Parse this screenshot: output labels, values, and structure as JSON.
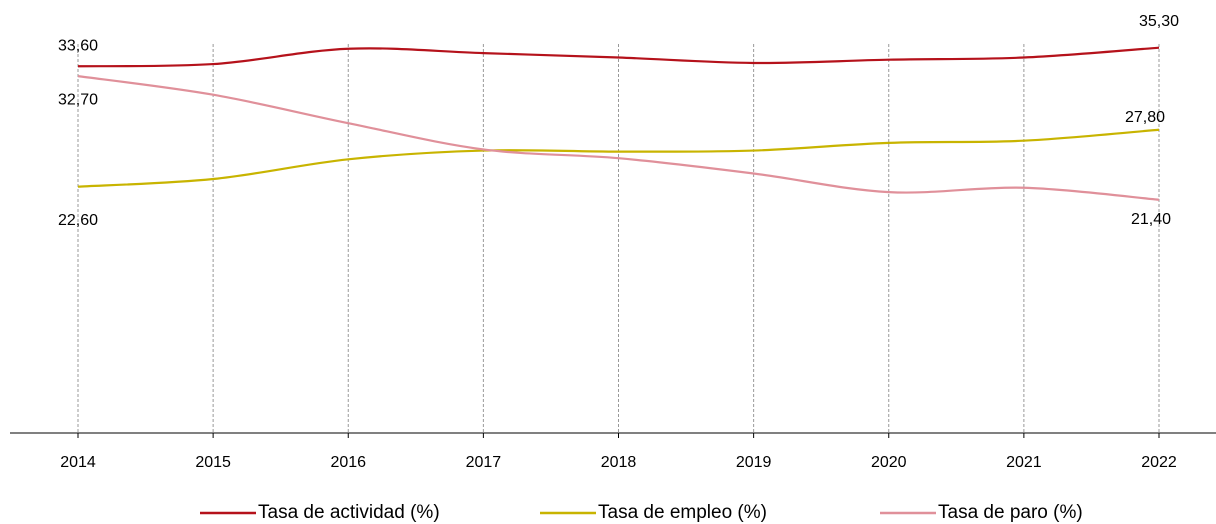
{
  "chart_data": {
    "type": "line",
    "categories": [
      "2014",
      "2015",
      "2016",
      "2017",
      "2018",
      "2019",
      "2020",
      "2021",
      "2022"
    ],
    "series": [
      {
        "name": "Tasa de actividad (%)",
        "color": "#b5121b",
        "values": [
          33.6,
          33.8,
          35.2,
          34.8,
          34.4,
          33.9,
          34.2,
          34.4,
          35.3
        ],
        "value_labels": [
          "33,60",
          null,
          null,
          null,
          null,
          null,
          null,
          null,
          "35,30"
        ]
      },
      {
        "name": "Tasa de empleo (%)",
        "color": "#c8b400",
        "values": [
          22.6,
          23.3,
          25.1,
          25.9,
          25.8,
          25.9,
          26.6,
          26.8,
          27.8
        ],
        "value_labels": [
          "22,60",
          null,
          null,
          null,
          null,
          null,
          null,
          null,
          "27,80"
        ]
      },
      {
        "name": "Tasa de paro (%)",
        "color": "#e0909a",
        "values": [
          32.7,
          31.0,
          28.4,
          26.0,
          25.2,
          23.8,
          22.1,
          22.5,
          21.4
        ],
        "value_labels": [
          "32,70",
          null,
          null,
          null,
          null,
          null,
          null,
          null,
          "21,40"
        ]
      }
    ],
    "ylim": [
      0,
      36
    ]
  }
}
